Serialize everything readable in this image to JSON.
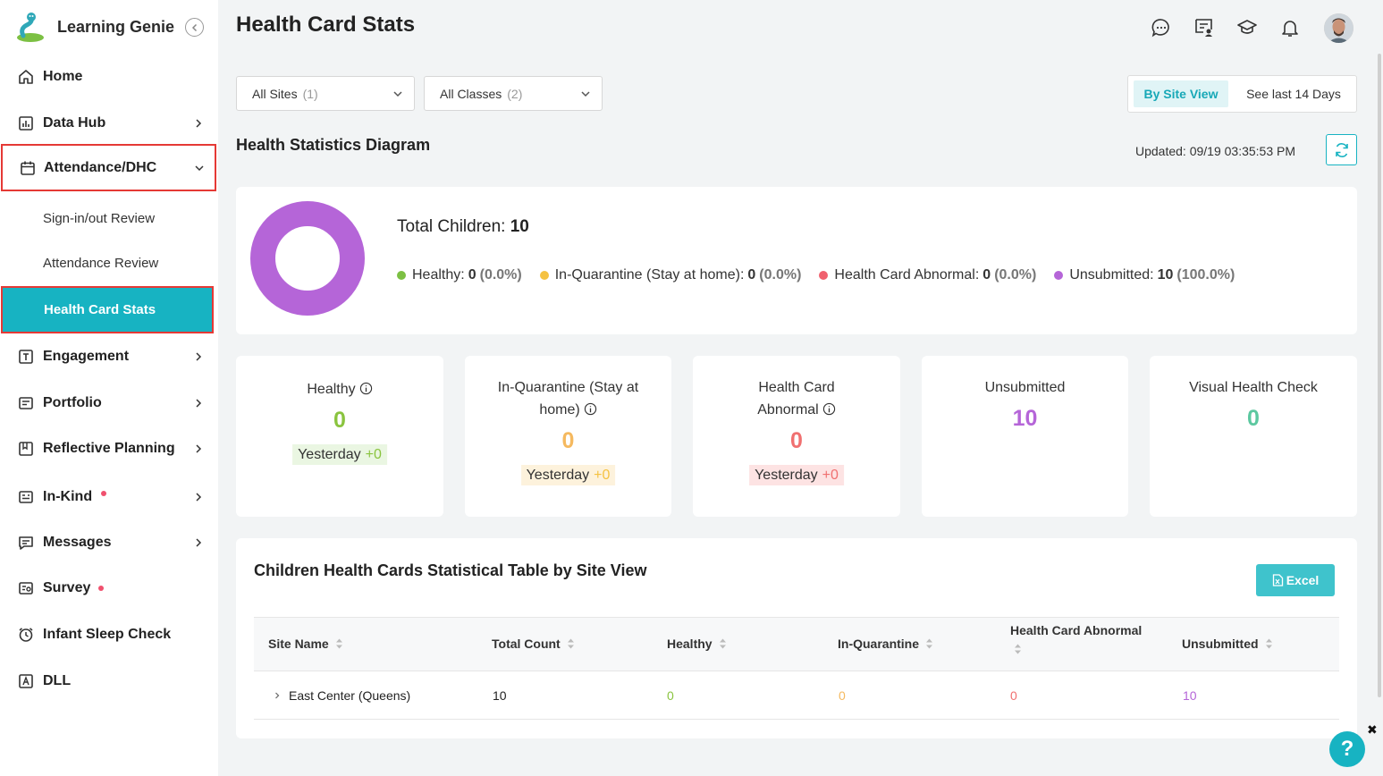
{
  "app": {
    "name": "Learning Genie"
  },
  "sidebar": {
    "items": [
      {
        "label": "Home"
      },
      {
        "label": "Data Hub"
      },
      {
        "label": "Attendance/DHC"
      },
      {
        "label": "Engagement"
      },
      {
        "label": "Portfolio"
      },
      {
        "label": "Reflective Planning"
      },
      {
        "label": "In-Kind"
      },
      {
        "label": "Messages"
      },
      {
        "label": "Survey"
      },
      {
        "label": "Infant Sleep Check"
      },
      {
        "label": "DLL"
      }
    ],
    "subitems": [
      {
        "label": "Sign-in/out Review"
      },
      {
        "label": "Attendance Review"
      },
      {
        "label": "Health Card Stats"
      }
    ]
  },
  "header": {
    "title": "Health Card Stats"
  },
  "filters": {
    "sites": {
      "label": "All Sites",
      "count": "(1)"
    },
    "classes": {
      "label": "All Classes",
      "count": "(2)"
    }
  },
  "view_toggle": {
    "by_site": "By Site View",
    "last_days": "See last 14 Days"
  },
  "diagram": {
    "title": "Health Statistics Diagram",
    "updated": "Updated: 09/19 03:35:53 PM",
    "total_label": "Total Children:",
    "total_value": "10",
    "legend": [
      {
        "label": "Healthy:",
        "value": "0",
        "pct": "(0.0%)",
        "color": "#7cc043"
      },
      {
        "label": "In-Quarantine (Stay at home):",
        "value": "0",
        "pct": "(0.0%)",
        "color": "#f5c242"
      },
      {
        "label": "Health Card Abnormal:",
        "value": "0",
        "pct": "(0.0%)",
        "color": "#f0606e"
      },
      {
        "label": "Unsubmitted:",
        "value": "10",
        "pct": "(100.0%)",
        "color": "#b565d8"
      }
    ]
  },
  "stats": [
    {
      "title": "Healthy",
      "value": "0",
      "yesterday": "Yesterday",
      "delta": "+0",
      "color": "#8ac43f"
    },
    {
      "title_line1": "In-Quarantine (Stay at",
      "title_line2": "home)",
      "value": "0",
      "yesterday": "Yesterday",
      "delta": "+0",
      "color": "#f5b95f"
    },
    {
      "title_line1": "Health Card",
      "title_line2": "Abnormal",
      "value": "0",
      "yesterday": "Yesterday",
      "delta": "+0",
      "color": "#f07070"
    },
    {
      "title": "Unsubmitted",
      "value": "10",
      "color": "#b565d8"
    },
    {
      "title": "Visual Health Check",
      "value": "0",
      "color": "#5cc8a0"
    }
  ],
  "table": {
    "title": "Children Health Cards Statistical Table by Site View",
    "excel_label": "Excel",
    "columns": [
      "Site Name",
      "Total Count",
      "Healthy",
      "In-Quarantine",
      "Health Card Abnormal",
      "Unsubmitted"
    ],
    "rows": [
      {
        "site": "East Center (Queens)",
        "total": "10",
        "healthy": "0",
        "quarantine": "0",
        "abnormal": "0",
        "unsubmitted": "10"
      }
    ]
  },
  "help": {
    "label": "?",
    "close": "✖"
  }
}
